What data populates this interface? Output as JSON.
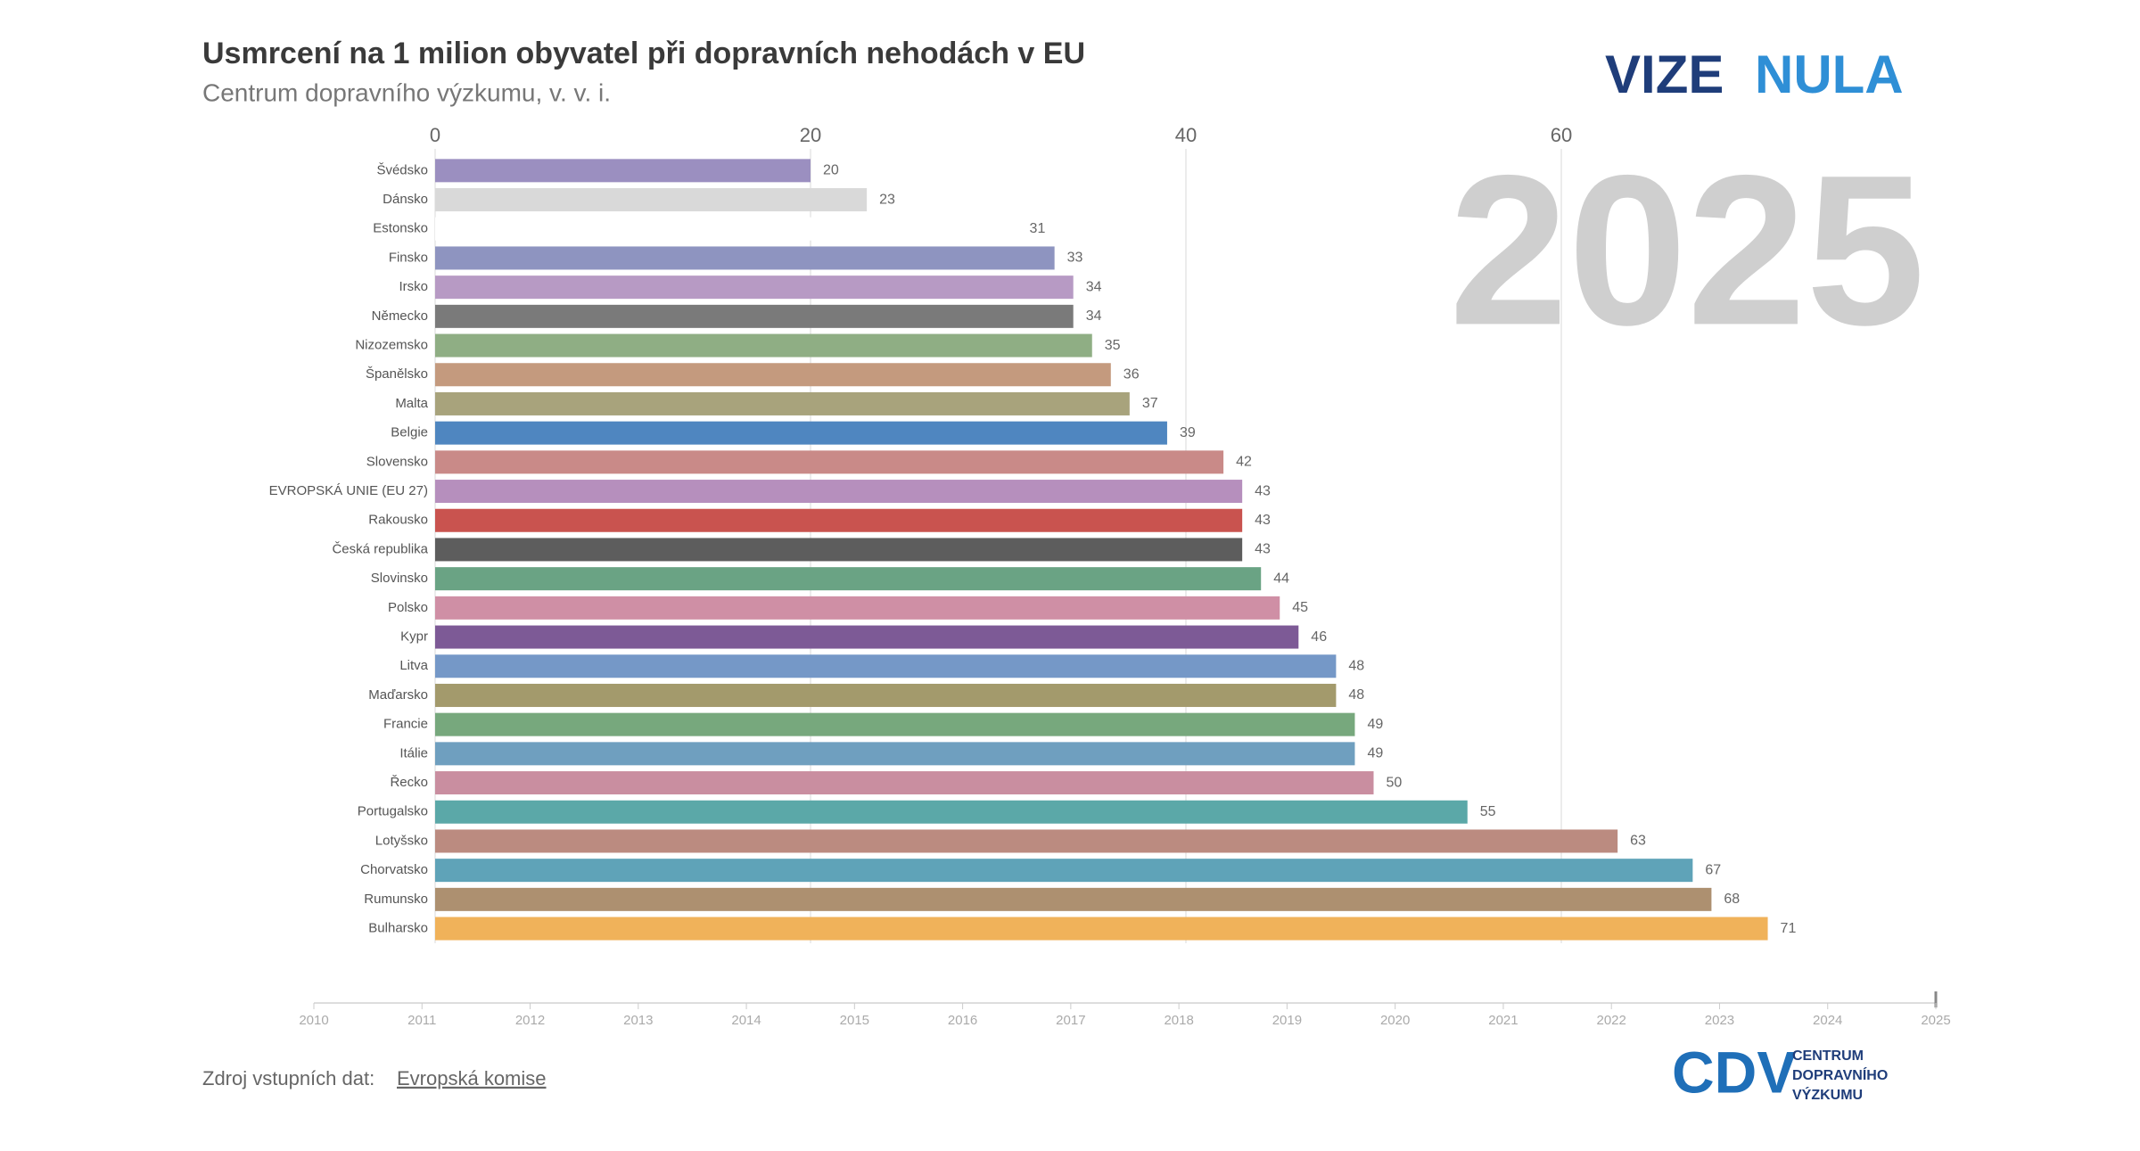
{
  "chart_data": {
    "type": "bar",
    "orientation": "horizontal",
    "title": "Usmrcení na 1 milion obyvatel při dopravních nehodách v EU",
    "subtitle": "Centrum dopravního výzkumu, v. v. i.",
    "year": "2025",
    "categories": [
      "Švédsko",
      "Dánsko",
      "Estonsko",
      "Finsko",
      "Irsko",
      "Německo",
      "Nizozemsko",
      "Španělsko",
      "Malta",
      "Belgie",
      "Slovensko",
      "EVROPSKÁ UNIE (EU 27)",
      "Rakousko",
      "Česká republika",
      "Slovinsko",
      "Polsko",
      "Kypr",
      "Litva",
      "Maďarsko",
      "Francie",
      "Itálie",
      "Řecko",
      "Portugalsko",
      "Lotyšsko",
      "Chorvatsko",
      "Rumunsko",
      "Bulharsko"
    ],
    "values": [
      20,
      23,
      31,
      33,
      34,
      34,
      35,
      36,
      37,
      39,
      42,
      43,
      43,
      43,
      44,
      45,
      46,
      48,
      48,
      49,
      49,
      50,
      55,
      63,
      67,
      68,
      71
    ],
    "colors": [
      "#9b8fc0",
      "#d9d9d9",
      "#ffffff",
      "#8e94c0",
      "#b79ac4",
      "#7a7a7a",
      "#8fae84",
      "#c49a7e",
      "#a8a37c",
      "#4f86c0",
      "#c98a88",
      "#b68fbd",
      "#c9534f",
      "#5d5d5d",
      "#6aa384",
      "#cf8fa5",
      "#7d5a96",
      "#7598c7",
      "#a39a6c",
      "#77a87d",
      "#6f9fbf",
      "#c98ea0",
      "#5ba8a8",
      "#bb8b80",
      "#5fa3b8",
      "#ad9070",
      "#f0b25a"
    ],
    "xlim": [
      0,
      80
    ],
    "xticks": [
      0,
      20,
      40,
      60
    ],
    "grid": true,
    "timeline": [
      "2010",
      "2011",
      "2012",
      "2013",
      "2014",
      "2015",
      "2016",
      "2017",
      "2018",
      "2019",
      "2020",
      "2021",
      "2022",
      "2023",
      "2024",
      "2025"
    ]
  },
  "brand": {
    "left": "VIZE",
    "right": "NULA"
  },
  "footer": {
    "source_prefix": "Zdroj vstupních dat:",
    "source_link": "Evropská komise",
    "logo_mark": "CDV",
    "logo_lines": [
      "CENTRUM",
      "DOPRAVNÍHO",
      "VÝZKUMU"
    ]
  }
}
